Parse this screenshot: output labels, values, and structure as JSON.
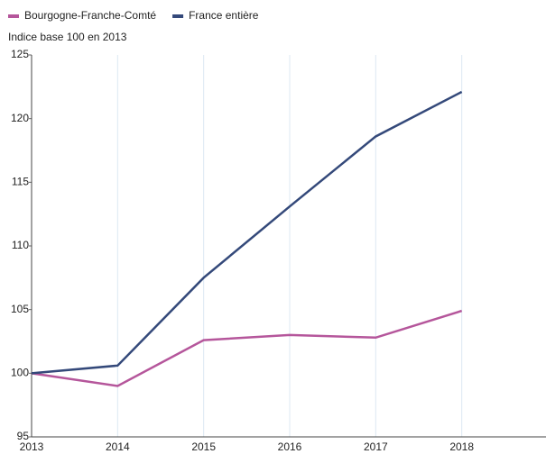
{
  "chart_data": {
    "type": "line",
    "title": "Indice base 100 en 2013",
    "x": [
      2013,
      2014,
      2015,
      2016,
      2017,
      2018
    ],
    "series": [
      {
        "name": "Bourgogne-Franche-Comté",
        "color": "#b5569b",
        "values": [
          100,
          99,
          102.6,
          103,
          102.8,
          104.9
        ]
      },
      {
        "name": "France entière",
        "color": "#34497a",
        "values": [
          100,
          100.6,
          107.5,
          113.1,
          118.6,
          122.1
        ]
      }
    ],
    "xlim": [
      2013,
      2019
    ],
    "xticks": [
      2013,
      2014,
      2015,
      2016,
      2017,
      2018
    ],
    "ylim": [
      95,
      125
    ],
    "yticks": [
      95,
      100,
      105,
      110,
      115,
      120,
      125
    ],
    "grid": true,
    "legend": "top-left"
  }
}
